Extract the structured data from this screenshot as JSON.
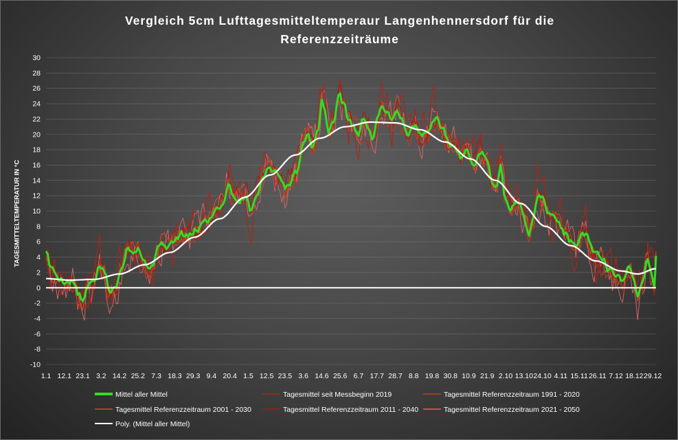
{
  "chart_data": {
    "type": "line",
    "title_line1": "Vergleich 5cm Lufttagesmitteltemperaur Langenhennersdorf für die",
    "title_line2": "Referenzzeiträume",
    "ylabel": "TAGESMITTELTEMPERATUR IN °C",
    "ylim": [
      -10,
      30
    ],
    "yticks": [
      -10,
      -8,
      -6,
      -4,
      -2,
      0,
      2,
      4,
      6,
      8,
      10,
      12,
      14,
      16,
      18,
      20,
      22,
      24,
      26,
      28,
      30
    ],
    "grid": true,
    "legend_position": "bottom",
    "x_labels": [
      "1.1",
      "12.1",
      "23.1",
      "3.2",
      "14.2",
      "25.2",
      "7.3",
      "18.3",
      "29.3",
      "9.4",
      "20.4",
      "1.5",
      "12.5",
      "23.5",
      "3.6",
      "14.6",
      "25.6",
      "6.7",
      "17.7",
      "28.7",
      "8.8",
      "19.8",
      "30.8",
      "10.9",
      "21.9",
      "2.10",
      "13.10",
      "24.10",
      "4.11",
      "15.11",
      "26.11",
      "7.12",
      "18.12",
      "29.12"
    ],
    "colors": {
      "mittel": "#33dd22",
      "seit2019": "#b02418",
      "r1991": "#c83a1c",
      "r2001": "#d84a24",
      "r2011": "#a01c14",
      "r2021": "#e06464",
      "poly": "#ffffff",
      "zero": "#ffffff"
    },
    "series": [
      {
        "key": "seit2019",
        "name": "Tagesmittel seit Messbeginn 2019",
        "legend_col": 1,
        "legend_row": 0
      },
      {
        "key": "r1991",
        "name": "Tagesmittel Referenzzeitraum 1991 - 2020",
        "legend_col": 2,
        "legend_row": 0
      },
      {
        "key": "r2001",
        "name": "Tagesmittel Referenzzeitraum 2001 - 2030",
        "legend_col": 0,
        "legend_row": 1
      },
      {
        "key": "r2011",
        "name": "Tagesmittel Referenzzeitraum 2011 - 2040",
        "legend_col": 1,
        "legend_row": 1
      },
      {
        "key": "r2021",
        "name": "Tagesmittel Referenzzeitraum 2021 - 2050",
        "legend_col": 2,
        "legend_row": 1
      },
      {
        "key": "mittel",
        "name": "Mittel aller Mittel",
        "legend_col": 0,
        "legend_row": 0
      },
      {
        "key": "poly",
        "name": "Poly. (Mittel aller Mittel)",
        "legend_col": 0,
        "legend_row": 2
      }
    ],
    "mittel_anchors": [
      [
        1,
        5.0
      ],
      [
        4,
        2.5
      ],
      [
        8,
        1.5
      ],
      [
        12,
        1.0
      ],
      [
        17,
        0.8
      ],
      [
        21,
        -1.0
      ],
      [
        23,
        -2.0
      ],
      [
        26,
        0.0
      ],
      [
        30,
        1.0
      ],
      [
        33,
        3.0
      ],
      [
        36,
        2.0
      ],
      [
        39,
        -0.5
      ],
      [
        43,
        0.0
      ],
      [
        46,
        3.0
      ],
      [
        50,
        5.5
      ],
      [
        53,
        5.0
      ],
      [
        56,
        5.5
      ],
      [
        60,
        3.5
      ],
      [
        62,
        2.5
      ],
      [
        65,
        3.5
      ],
      [
        67,
        4.5
      ],
      [
        70,
        6.0
      ],
      [
        74,
        5.5
      ],
      [
        78,
        6.0
      ],
      [
        82,
        7.0
      ],
      [
        86,
        6.5
      ],
      [
        91,
        7.5
      ],
      [
        95,
        8.5
      ],
      [
        99,
        9.0
      ],
      [
        103,
        10.5
      ],
      [
        107,
        11.0
      ],
      [
        110,
        14.0
      ],
      [
        113,
        12.0
      ],
      [
        117,
        11.5
      ],
      [
        121,
        12.0
      ],
      [
        124,
        10.0
      ],
      [
        127,
        12.5
      ],
      [
        131,
        14.5
      ],
      [
        135,
        16.0
      ],
      [
        138,
        15.0
      ],
      [
        141,
        14.5
      ],
      [
        144,
        13.0
      ],
      [
        147,
        14.0
      ],
      [
        151,
        15.0
      ],
      [
        155,
        19.5
      ],
      [
        158,
        20.0
      ],
      [
        161,
        18.5
      ],
      [
        164,
        21.0
      ],
      [
        166,
        24.5
      ],
      [
        168,
        23.0
      ],
      [
        170,
        20.0
      ],
      [
        173,
        21.5
      ],
      [
        176,
        25.5
      ],
      [
        179,
        24.0
      ],
      [
        182,
        22.0
      ],
      [
        185,
        21.0
      ],
      [
        188,
        20.0
      ],
      [
        191,
        22.0
      ],
      [
        194,
        21.0
      ],
      [
        197,
        19.5
      ],
      [
        199,
        21.5
      ],
      [
        202,
        24.0
      ],
      [
        205,
        23.0
      ],
      [
        208,
        22.0
      ],
      [
        211,
        23.5
      ],
      [
        214,
        22.0
      ],
      [
        218,
        20.0
      ],
      [
        222,
        21.0
      ],
      [
        226,
        19.5
      ],
      [
        230,
        20.5
      ],
      [
        234,
        22.0
      ],
      [
        238,
        21.0
      ],
      [
        241,
        19.0
      ],
      [
        245,
        18.5
      ],
      [
        249,
        17.0
      ],
      [
        253,
        18.0
      ],
      [
        257,
        16.5
      ],
      [
        261,
        18.0
      ],
      [
        264,
        17.0
      ],
      [
        268,
        14.0
      ],
      [
        271,
        13.0
      ],
      [
        273,
        16.0
      ],
      [
        276,
        11.5
      ],
      [
        279,
        10.5
      ],
      [
        283,
        11.0
      ],
      [
        287,
        9.5
      ],
      [
        290,
        7.0
      ],
      [
        293,
        9.0
      ],
      [
        295,
        12.0
      ],
      [
        298,
        11.5
      ],
      [
        302,
        10.0
      ],
      [
        306,
        9.0
      ],
      [
        309,
        8.0
      ],
      [
        312,
        7.0
      ],
      [
        315,
        6.0
      ],
      [
        318,
        5.0
      ],
      [
        321,
        6.5
      ],
      [
        324,
        7.0
      ],
      [
        327,
        5.0
      ],
      [
        330,
        4.0
      ],
      [
        334,
        3.5
      ],
      [
        338,
        2.5
      ],
      [
        342,
        1.5
      ],
      [
        346,
        0.5
      ],
      [
        350,
        2.5
      ],
      [
        353,
        1.5
      ],
      [
        355,
        -1.0
      ],
      [
        358,
        1.0
      ],
      [
        361,
        4.0
      ],
      [
        363,
        2.0
      ],
      [
        365,
        0.0
      ],
      [
        366,
        4.0
      ]
    ],
    "ensemble_offsets": [
      {
        "key": "seit2019",
        "seed": 11,
        "noise": 2.6,
        "shift": 0.3
      },
      {
        "key": "r1991",
        "seed": 23,
        "noise": 1.2,
        "shift": -0.2
      },
      {
        "key": "r2001",
        "seed": 37,
        "noise": 1.0,
        "shift": 0.0
      },
      {
        "key": "r2011",
        "seed": 51,
        "noise": 1.1,
        "shift": 0.2
      },
      {
        "key": "r2021",
        "seed": 67,
        "noise": 2.0,
        "shift": -0.3
      }
    ],
    "poly_anchors": [
      [
        1,
        1.2
      ],
      [
        15,
        1.0
      ],
      [
        30,
        1.1
      ],
      [
        45,
        1.8
      ],
      [
        60,
        3.0
      ],
      [
        75,
        4.6
      ],
      [
        90,
        6.6
      ],
      [
        105,
        9.0
      ],
      [
        120,
        11.8
      ],
      [
        135,
        14.7
      ],
      [
        150,
        17.3
      ],
      [
        165,
        19.5
      ],
      [
        180,
        21.0
      ],
      [
        195,
        21.6
      ],
      [
        210,
        21.5
      ],
      [
        225,
        20.6
      ],
      [
        240,
        19.0
      ],
      [
        255,
        16.8
      ],
      [
        270,
        14.0
      ],
      [
        285,
        11.0
      ],
      [
        300,
        8.0
      ],
      [
        315,
        5.5
      ],
      [
        330,
        3.5
      ],
      [
        345,
        2.2
      ],
      [
        355,
        1.8
      ],
      [
        366,
        2.5
      ]
    ]
  }
}
